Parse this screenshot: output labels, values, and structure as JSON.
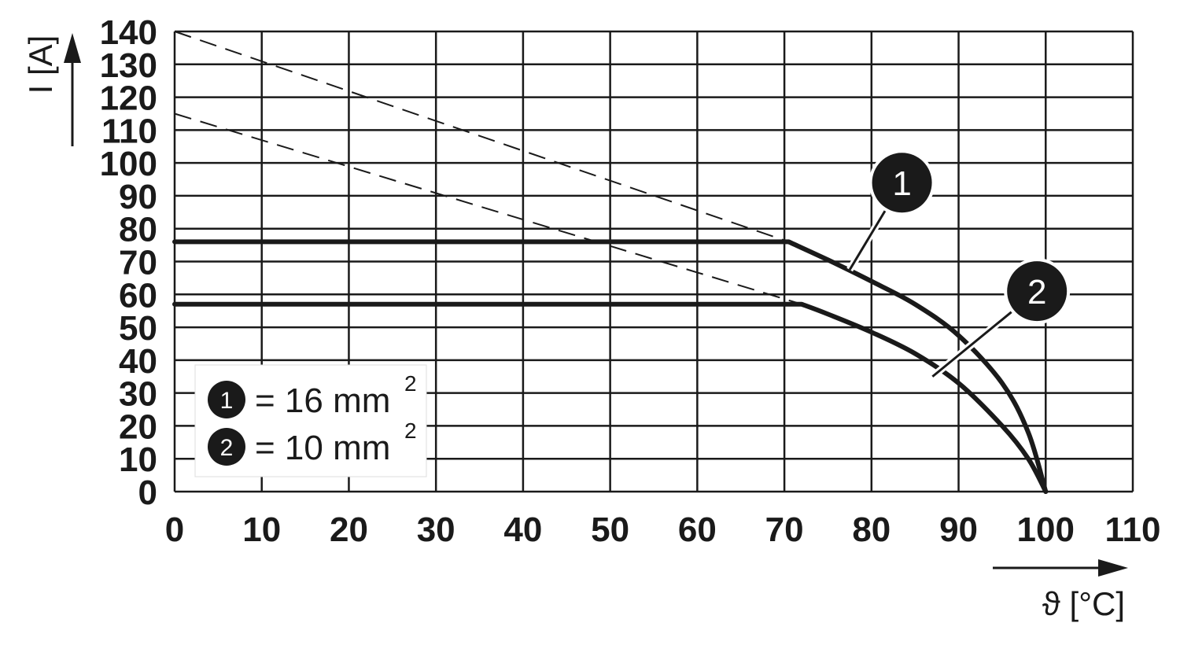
{
  "chart_data": {
    "type": "line",
    "xlabel": "ϑ [°C]",
    "ylabel": "I [A]",
    "xlim": [
      0,
      110
    ],
    "ylim": [
      0,
      140
    ],
    "x_ticks": [
      "0",
      "10",
      "20",
      "30",
      "40",
      "50",
      "60",
      "70",
      "80",
      "90",
      "100",
      "110"
    ],
    "y_ticks": [
      "0",
      "10",
      "20",
      "30",
      "40",
      "50",
      "60",
      "70",
      "80",
      "90",
      "100",
      "110",
      "120",
      "130",
      "140"
    ],
    "grid": true,
    "legend_position": "bottom-left",
    "series": [
      {
        "marker": "1",
        "legend_text": "= 16 mm",
        "legend_superscript": "2",
        "points": [
          [
            0,
            76
          ],
          [
            70.5,
            76
          ],
          [
            75,
            70.5
          ],
          [
            80,
            64
          ],
          [
            85,
            57
          ],
          [
            90,
            47.5
          ],
          [
            95,
            33
          ],
          [
            98,
            18
          ],
          [
            100,
            0
          ]
        ],
        "style": "solid"
      },
      {
        "marker": "2",
        "legend_text": "= 10 mm",
        "legend_superscript": "2",
        "points": [
          [
            0,
            57
          ],
          [
            72,
            57
          ],
          [
            75,
            54
          ],
          [
            80,
            48.5
          ],
          [
            85,
            42
          ],
          [
            90,
            33
          ],
          [
            95,
            20
          ],
          [
            98,
            10
          ],
          [
            100,
            0
          ]
        ],
        "style": "solid"
      }
    ],
    "reference_lines": [
      {
        "points": [
          [
            0,
            140
          ],
          [
            70.5,
            76
          ]
        ],
        "style": "dashed"
      },
      {
        "points": [
          [
            0,
            115
          ],
          [
            72,
            57
          ]
        ],
        "style": "dashed"
      }
    ],
    "annotations": [
      {
        "label": "1",
        "x": 83.5,
        "y": 94,
        "pointer_to": [
          77.5,
          67.5
        ]
      },
      {
        "label": "2",
        "x": 99,
        "y": 61,
        "pointer_to": [
          87,
          35
        ]
      }
    ]
  },
  "colors": {
    "line": "#1a1a1a",
    "grid": "#1a1a1a",
    "background": "#ffffff"
  }
}
